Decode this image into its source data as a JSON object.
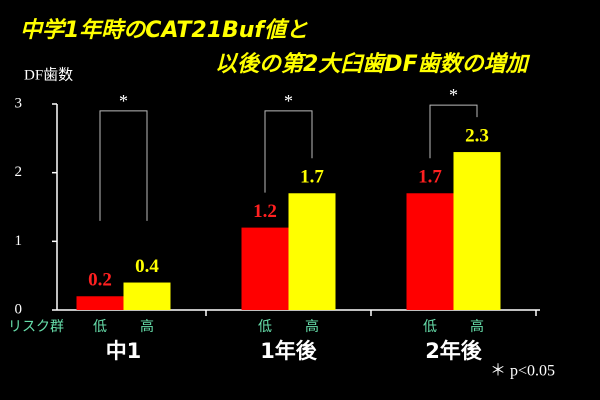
{
  "chart_data": {
    "type": "bar",
    "title": [
      "中学1年時のCAT21Buf値と",
      "以後の第2大臼歯DF歯数の増加"
    ],
    "y_label": "DF歯数",
    "group_label": "リスク群",
    "categories": [
      "中1",
      "1年後",
      "2年後"
    ],
    "series": [
      {
        "name": "低",
        "color": "#ff0000",
        "label_color": "#ff2020",
        "values": [
          0.2,
          1.2,
          1.7
        ]
      },
      {
        "name": "高",
        "color": "#ffff00",
        "label_color": "#ffff00",
        "values": [
          0.4,
          1.7,
          2.3
        ]
      }
    ],
    "significance": [
      "*",
      "*",
      "*"
    ],
    "note": "＊ p<0.05",
    "ylim": [
      0,
      3
    ],
    "yticks": [
      0,
      1,
      2,
      3
    ]
  }
}
